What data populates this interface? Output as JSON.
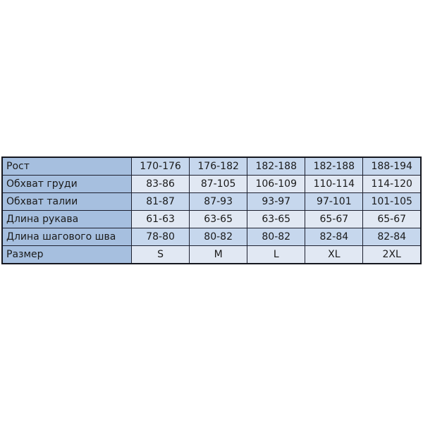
{
  "table": {
    "rows": [
      {
        "label": "Рост",
        "values": [
          "170-176",
          "176-182",
          "182-188",
          "182-188",
          "188-194"
        ]
      },
      {
        "label": "Обхват груди",
        "values": [
          "83-86",
          "87-105",
          "106-109",
          "110-114",
          "114-120"
        ]
      },
      {
        "label": "Обхват талии",
        "values": [
          "81-87",
          "87-93",
          "93-97",
          "97-101",
          "101-105"
        ]
      },
      {
        "label": "Длина рукава",
        "values": [
          "61-63",
          "63-65",
          "63-65",
          "65-67",
          "65-67"
        ]
      },
      {
        "label": "Длина шагового шва",
        "values": [
          "78-80",
          "80-82",
          "80-82",
          "82-84",
          "82-84"
        ]
      },
      {
        "label": "Размер",
        "values": [
          "S",
          "M",
          "L",
          "XL",
          "2XL"
        ]
      }
    ]
  },
  "colors": {
    "label_bg": "#a6bfdf",
    "cell_odd": "#c6d7ed",
    "cell_even": "#e1e8f3",
    "border": "#15171f"
  }
}
